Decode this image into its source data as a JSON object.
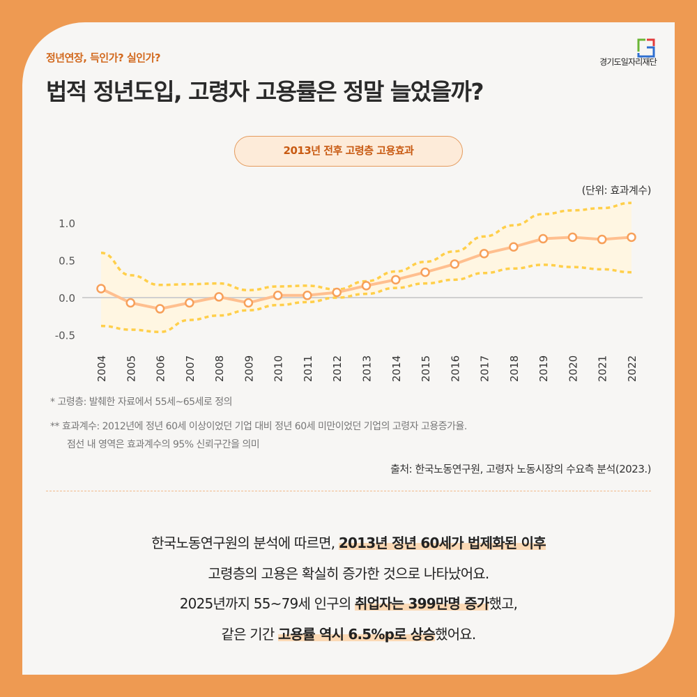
{
  "header": {
    "kicker": "정년연장, 득인가? 실인가?",
    "title": "법적 정년도입, 고령자 고용률은 정말 늘었을까?",
    "logo_text": "경기도일자리재단"
  },
  "chart_data": {
    "type": "line",
    "title": "2013년 전후 고령층 고용효과",
    "unit_label": "(단위: 효과계수)",
    "x": [
      2004,
      2005,
      2006,
      2007,
      2008,
      2009,
      2010,
      2011,
      2012,
      2013,
      2014,
      2015,
      2016,
      2017,
      2018,
      2019,
      2020,
      2021,
      2022
    ],
    "x_tick_labels": [
      "2004",
      "2005",
      "2006",
      "2007",
      "2008",
      "2009",
      "2010",
      "2011",
      "2012",
      "2013",
      "2014",
      "2015",
      "2016",
      "2017",
      "2018",
      "2019",
      "2020",
      "2021",
      "2022"
    ],
    "y_tick_labels": [
      "1.0",
      "0.5",
      "0.0",
      "-0.5"
    ],
    "y_ticks": [
      1.0,
      0.5,
      0.0,
      -0.5
    ],
    "ylim": [
      -0.5,
      1.3
    ],
    "series": [
      {
        "values": [
          0.12,
          -0.07,
          -0.15,
          -0.07,
          0.01,
          -0.07,
          0.03,
          0.03,
          0.07,
          0.16,
          0.24,
          0.34,
          0.45,
          0.59,
          0.68,
          0.79,
          0.81,
          0.78,
          0.81
        ]
      }
    ],
    "ci_upper": [
      0.6,
      0.3,
      0.17,
      0.18,
      0.19,
      0.1,
      0.15,
      0.16,
      0.11,
      0.22,
      0.35,
      0.48,
      0.62,
      0.82,
      0.97,
      1.12,
      1.17,
      1.2,
      1.27
    ],
    "ci_lower": [
      -0.38,
      -0.43,
      -0.46,
      -0.3,
      -0.24,
      -0.17,
      -0.1,
      -0.06,
      0.0,
      0.05,
      0.13,
      0.19,
      0.24,
      0.33,
      0.39,
      0.44,
      0.41,
      0.38,
      0.34
    ],
    "grid": false,
    "colors": {
      "line": "#FFBF8F",
      "marker": "#F7A05A",
      "ci_line": "#FFCF4A",
      "ci_fill": "#FFF6E2",
      "zero_line": "#D0D0D0"
    }
  },
  "notes": {
    "note1": "* 고령층: 발췌한 자료에서 55세~65세로 정의",
    "note2": "** 효과계수: 2012년에 정년 60세 이상이었던 기업 대비 정년 60세 미만이었던 기업의 고령자 고용증가율.",
    "note3": "점선 내 영역은 효과계수의 95% 신뢰구간을 의미",
    "source": "출처: 한국노동연구원, 고령자 노동시장의 수요측 분석(2023.)"
  },
  "body": {
    "l1a": "한국노동연구원의 분석에 따르면, ",
    "l1b": "2013년 정년 60세가 법제화된 이후",
    "l2": "고령층의 고용은 확실히 증가한 것으로 나타났어요.",
    "l3a": "2025년까지 55~79세 인구의 ",
    "l3b": "취업자는 399만명 증가",
    "l3c": "했고,",
    "l4a": "같은 기간 ",
    "l4b": "고용률 역시 6.5%p로 상승",
    "l4c": "했어요."
  }
}
